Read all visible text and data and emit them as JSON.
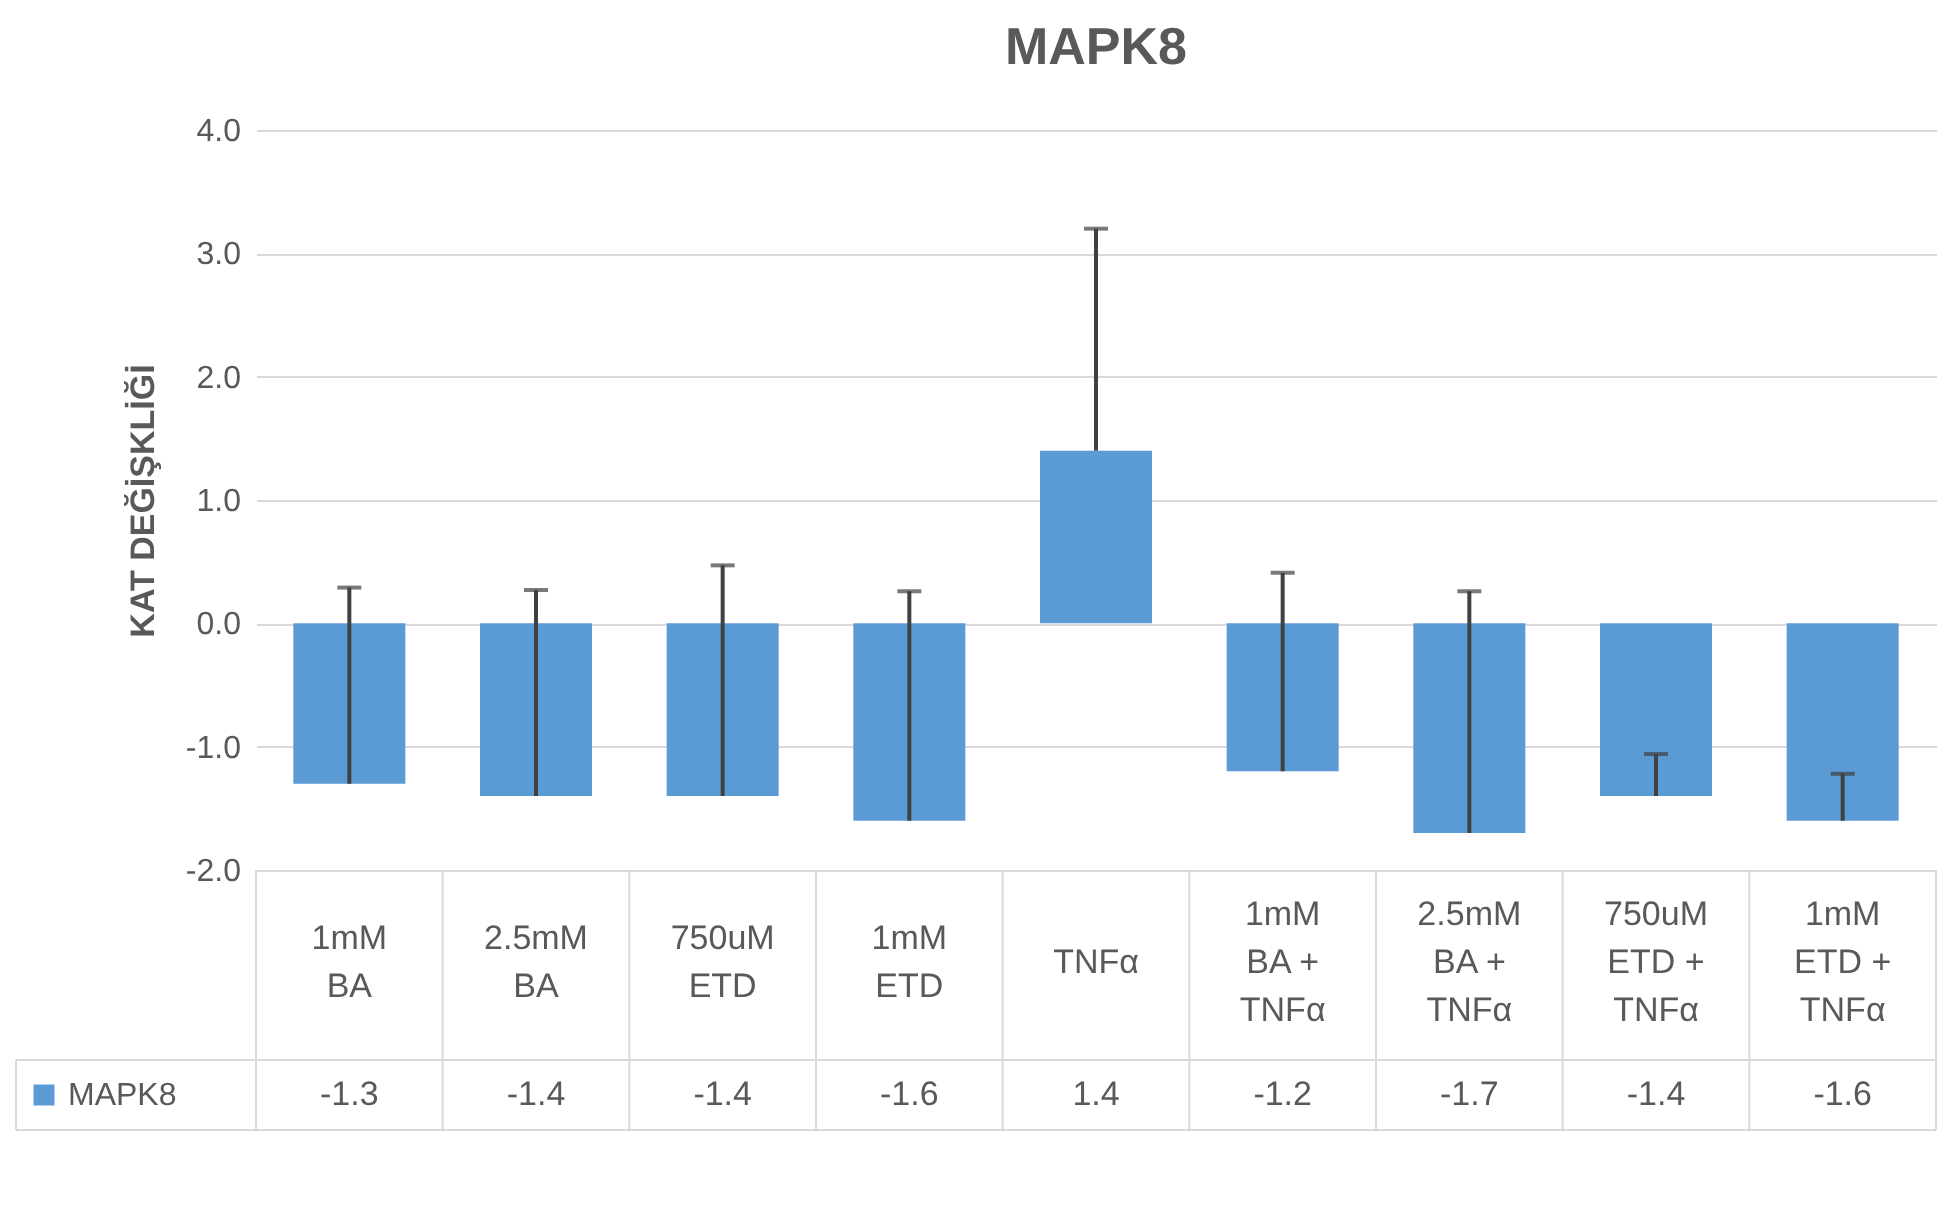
{
  "chart_data": {
    "type": "bar",
    "title": "MAPK8",
    "ylabel": "KAT DEĞİŞKLİĞİ",
    "categories": [
      "1mM BA",
      "2.5mM BA",
      "750uM ETD",
      "1mM ETD",
      "TNFα",
      "1mM BA + TNFα",
      "2.5mM BA + TNFα",
      "750uM ETD + TNFα",
      "1mM ETD + TNFα"
    ],
    "series": [
      {
        "name": "MAPK8",
        "color": "#5b9bd5",
        "values": [
          -1.3,
          -1.4,
          -1.4,
          -1.6,
          1.4,
          -1.2,
          -1.7,
          -1.4,
          -1.6
        ],
        "errors": [
          [
            -1.3,
            0.29
          ],
          [
            -1.4,
            0.27
          ],
          [
            -1.4,
            0.47
          ],
          [
            -1.6,
            0.26
          ],
          [
            1.4,
            3.2
          ],
          [
            -1.2,
            0.41
          ],
          [
            -1.7,
            0.26
          ],
          [
            -1.4,
            -1.06
          ],
          [
            -1.6,
            -1.22
          ]
        ]
      }
    ],
    "ylim": [
      -2,
      4
    ],
    "yticks": [
      {
        "value": -2,
        "label": "-2.0"
      },
      {
        "value": -1,
        "label": "-1.0"
      },
      {
        "value": 0,
        "label": "0.0"
      },
      {
        "value": 1,
        "label": "1.0"
      },
      {
        "value": 2,
        "label": "2.0"
      },
      {
        "value": 3,
        "label": "3.0"
      },
      {
        "value": 4,
        "label": "4.0"
      }
    ],
    "grid": "y",
    "legend": "bottom",
    "data_labels": true
  }
}
